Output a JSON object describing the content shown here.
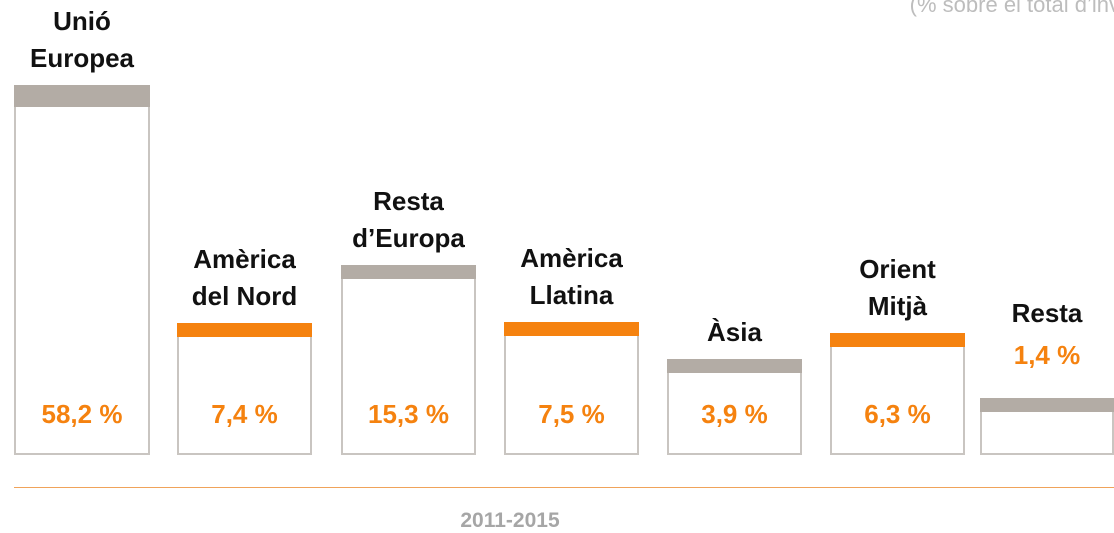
{
  "chart_data": {
    "type": "bar",
    "subtitle": "(% sobre el total d’inv",
    "x_label": "2011-2015",
    "categories": [
      "Unió\nEuropea",
      "Amèrica\ndel Nord",
      "Resta\nd’Europa",
      "Amèrica\nLlatina",
      "Àsia",
      "Orient\nMitjà",
      "Resta"
    ],
    "values": [
      58.2,
      7.4,
      15.3,
      7.5,
      3.9,
      6.3,
      1.4
    ],
    "value_labels": [
      "58,2 %",
      "7,4 %",
      "15,3 %",
      "7,5 %",
      "3,9 %",
      "6,3 %",
      "1,4 %"
    ],
    "colors": [
      "#b3aca5",
      "#f5820f",
      "#b3aca5",
      "#f5820f",
      "#b3aca5",
      "#f5820f",
      "#b3aca5"
    ],
    "yscale": "sqrt"
  }
}
